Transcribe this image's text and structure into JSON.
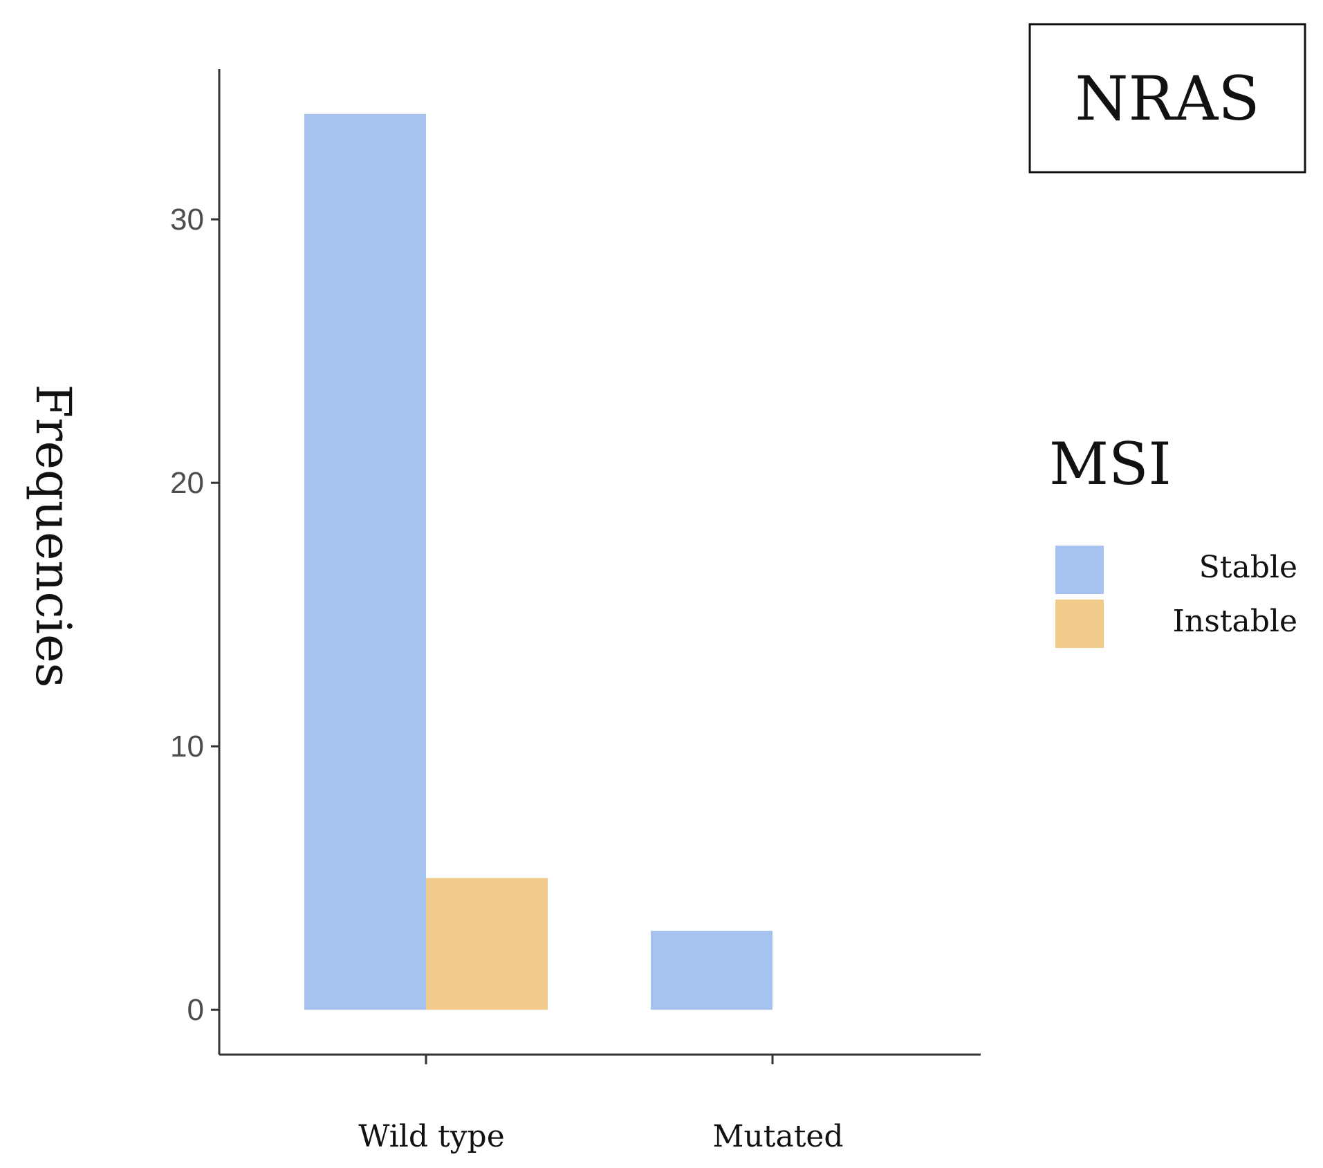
{
  "chart_data": {
    "type": "bar",
    "title": "NRAS",
    "xlabel": "",
    "ylabel": "Frequencies",
    "categories": [
      "Wild type",
      "Mutated"
    ],
    "series": [
      {
        "name": "Stable",
        "color": "#a6c3ef",
        "values": [
          34,
          3
        ]
      },
      {
        "name": "Instable",
        "color": "#f0cb8c",
        "values": [
          5,
          0
        ]
      }
    ],
    "yticks": [
      0,
      10,
      20,
      30
    ],
    "ytick_labels": [
      "0",
      "10",
      "20",
      "30"
    ],
    "ylim": [
      -1.7,
      35.7
    ],
    "grid": false,
    "legend": {
      "title": "MSI",
      "position": "right",
      "entries": [
        "Stable",
        "Instable"
      ]
    }
  }
}
